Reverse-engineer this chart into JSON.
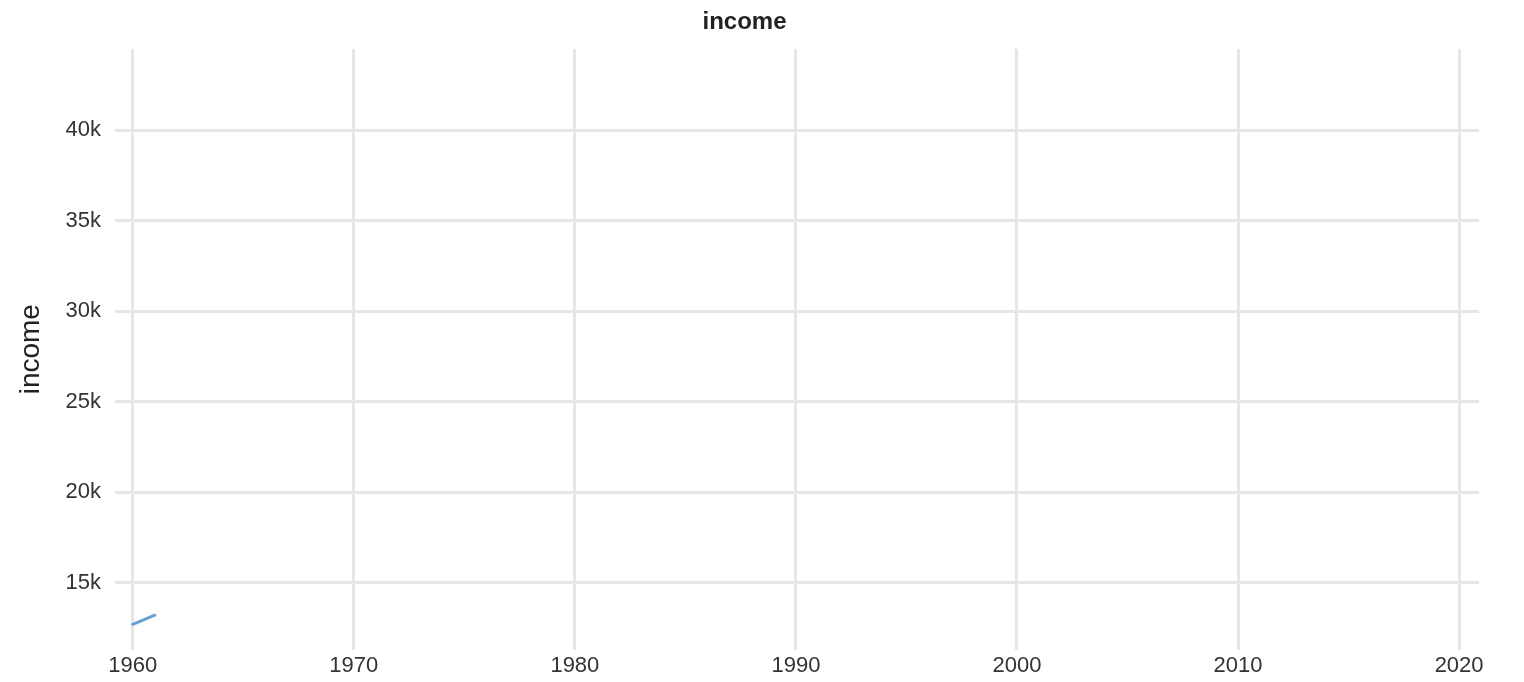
{
  "chart_data": {
    "type": "line",
    "title": "income",
    "ylabel": "income",
    "series": [
      {
        "color": "#6a9fd4",
        "x": [
          1960,
          1961
        ],
        "values": [
          12700,
          13200
        ]
      }
    ],
    "xlim": [
      1959.2,
      2020.9
    ],
    "xticks": [
      1960,
      1970,
      1980,
      1990,
      2000,
      2010,
      2020
    ],
    "ylim": [
      11300,
      44500
    ],
    "yticks": [
      {
        "value": 15000,
        "label": "15k"
      },
      {
        "value": 20000,
        "label": "20k"
      },
      {
        "value": 25000,
        "label": "25k"
      },
      {
        "value": 30000,
        "label": "30k"
      },
      {
        "value": 35000,
        "label": "35k"
      },
      {
        "value": 40000,
        "label": "40k"
      }
    ],
    "grid": true,
    "legend": false,
    "marker": "none",
    "line_style": "solid"
  }
}
